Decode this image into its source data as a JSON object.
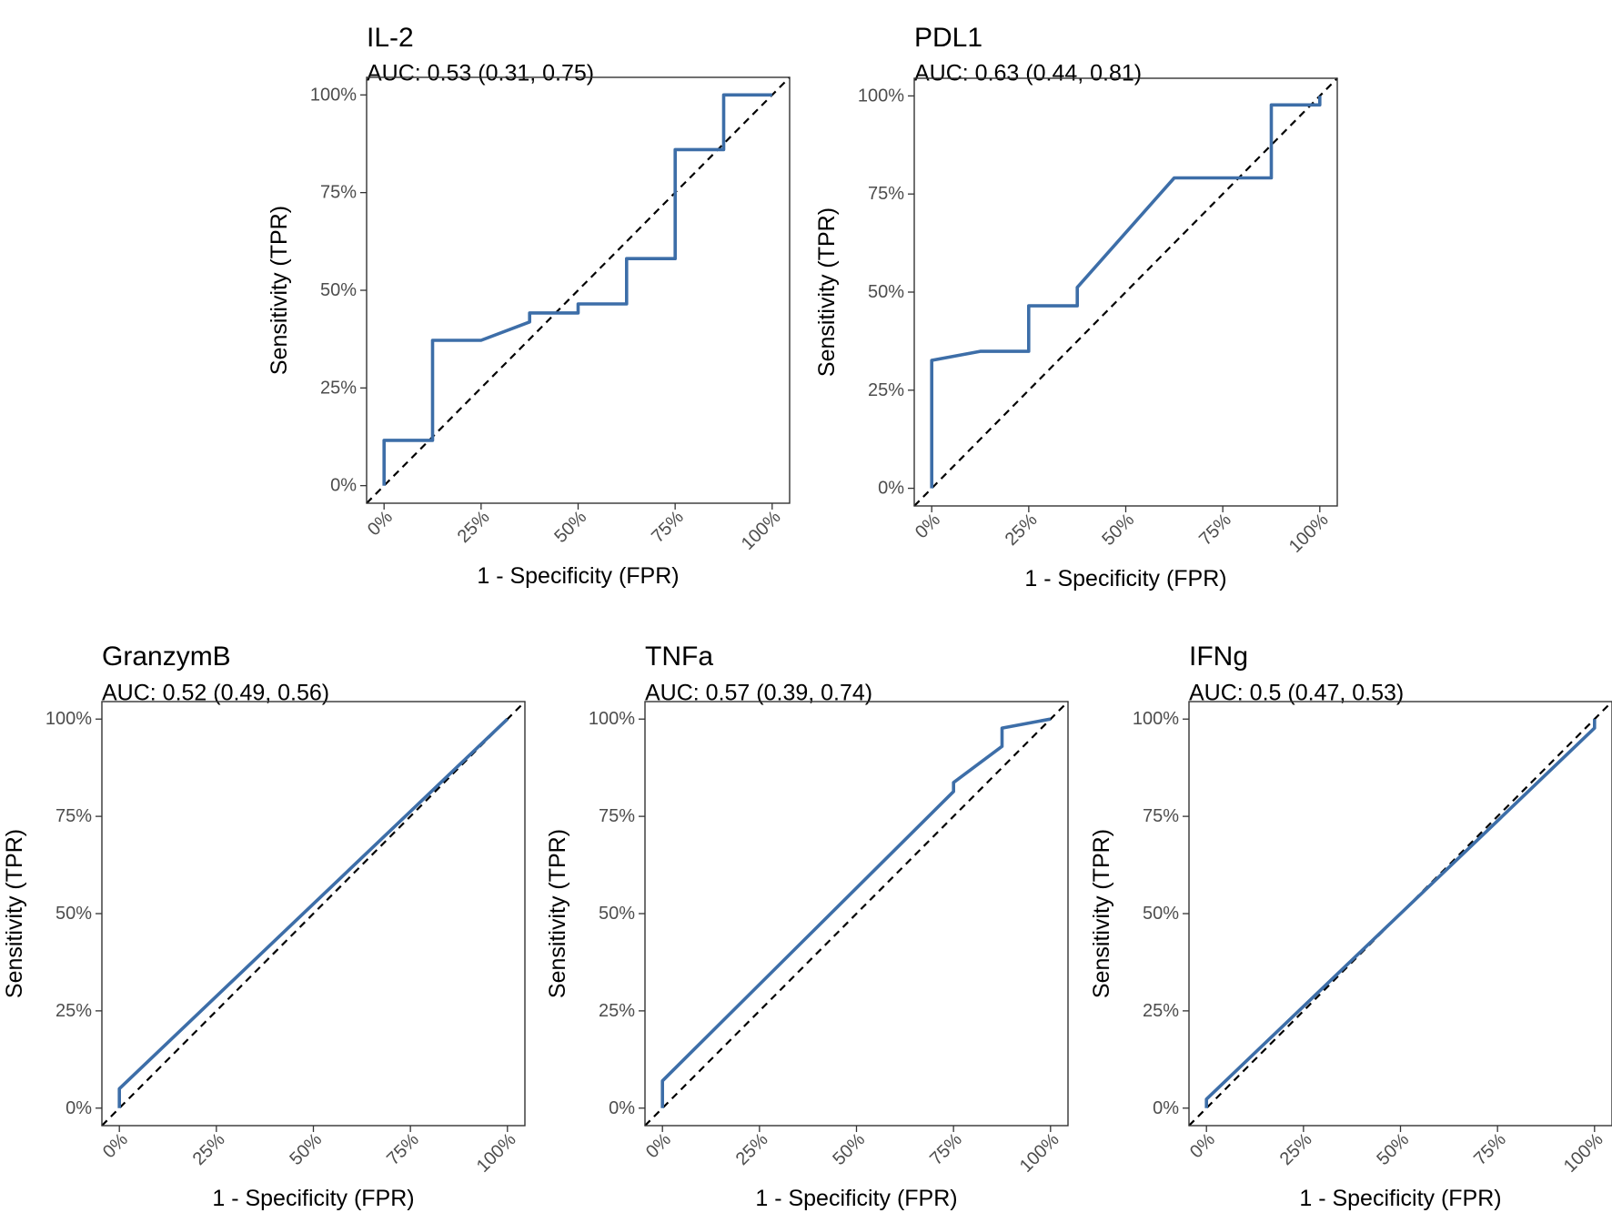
{
  "chart_data": [
    {
      "type": "line",
      "title": "IL-2",
      "subtitle": "AUC: 0.53 (0.31, 0.75)",
      "xlabel": "1 - Specificity (FPR)",
      "ylabel": "Sensitivity (TPR)",
      "xlim": [
        0,
        1
      ],
      "ylim": [
        0,
        1
      ],
      "xticks": [
        "0%",
        "25%",
        "50%",
        "75%",
        "100%"
      ],
      "yticks": [
        "0%",
        "25%",
        "50%",
        "75%",
        "100%"
      ],
      "reference_line": "diagonal (dashed)",
      "series": [
        {
          "name": "ROC",
          "x": [
            0,
            0,
            0.125,
            0.125,
            0.25,
            0.375,
            0.375,
            0.5,
            0.5,
            0.625,
            0.625,
            0.75,
            0.75,
            0.875,
            0.875,
            1
          ],
          "y": [
            0,
            0.116,
            0.116,
            0.372,
            0.372,
            0.419,
            0.442,
            0.442,
            0.465,
            0.465,
            0.581,
            0.581,
            0.86,
            0.86,
            1.0,
            1.0
          ]
        }
      ]
    },
    {
      "type": "line",
      "title": "PDL1",
      "subtitle": "AUC: 0.63 (0.44, 0.81)",
      "xlabel": "1 - Specificity (FPR)",
      "ylabel": "Sensitivity (TPR)",
      "xlim": [
        0,
        1
      ],
      "ylim": [
        0,
        1
      ],
      "xticks": [
        "0%",
        "25%",
        "50%",
        "75%",
        "100%"
      ],
      "yticks": [
        "0%",
        "25%",
        "50%",
        "75%",
        "100%"
      ],
      "reference_line": "diagonal (dashed)",
      "series": [
        {
          "name": "ROC",
          "x": [
            0,
            0,
            0.125,
            0.25,
            0.25,
            0.375,
            0.375,
            0.625,
            0.875,
            0.875,
            1,
            1
          ],
          "y": [
            0,
            0.326,
            0.349,
            0.349,
            0.465,
            0.465,
            0.512,
            0.791,
            0.791,
            0.977,
            0.977,
            1.0
          ]
        }
      ]
    },
    {
      "type": "line",
      "title": "GranzymB",
      "subtitle": "AUC: 0.52 (0.49, 0.56)",
      "xlabel": "1 - Specificity (FPR)",
      "ylabel": "Sensitivity (TPR)",
      "xlim": [
        0,
        1
      ],
      "ylim": [
        0,
        1
      ],
      "xticks": [
        "0%",
        "25%",
        "50%",
        "75%",
        "100%"
      ],
      "yticks": [
        "0%",
        "25%",
        "50%",
        "75%",
        "100%"
      ],
      "reference_line": "diagonal (dashed)",
      "series": [
        {
          "name": "ROC",
          "x": [
            0,
            0,
            1
          ],
          "y": [
            0,
            0.05,
            1.0
          ]
        }
      ]
    },
    {
      "type": "line",
      "title": "TNFa",
      "subtitle": "AUC: 0.57 (0.39, 0.74)",
      "xlabel": "1 - Specificity (FPR)",
      "ylabel": "Sensitivity (TPR)",
      "xlim": [
        0,
        1
      ],
      "ylim": [
        0,
        1
      ],
      "xticks": [
        "0%",
        "25%",
        "50%",
        "75%",
        "100%"
      ],
      "yticks": [
        "0%",
        "25%",
        "50%",
        "75%",
        "100%"
      ],
      "reference_line": "diagonal (dashed)",
      "series": [
        {
          "name": "ROC",
          "x": [
            0,
            0,
            0.75,
            0.75,
            0.875,
            0.875,
            1
          ],
          "y": [
            0,
            0.07,
            0.814,
            0.837,
            0.93,
            0.977,
            1.0
          ]
        }
      ]
    },
    {
      "type": "line",
      "title": "IFNg",
      "subtitle": "AUC: 0.5 (0.47, 0.53)",
      "xlabel": "1 - Specificity (FPR)",
      "ylabel": "Sensitivity (TPR)",
      "xlim": [
        0,
        1
      ],
      "ylim": [
        0,
        1
      ],
      "xticks": [
        "0%",
        "25%",
        "50%",
        "75%",
        "100%"
      ],
      "yticks": [
        "0%",
        "25%",
        "50%",
        "75%",
        "100%"
      ],
      "reference_line": "diagonal (dashed)",
      "series": [
        {
          "name": "ROC",
          "x": [
            0,
            0,
            1,
            1
          ],
          "y": [
            0,
            0.023,
            0.977,
            1.0
          ]
        }
      ]
    }
  ],
  "colors": {
    "roc_line": "#3d6ea8",
    "reference_line": "#000000"
  }
}
